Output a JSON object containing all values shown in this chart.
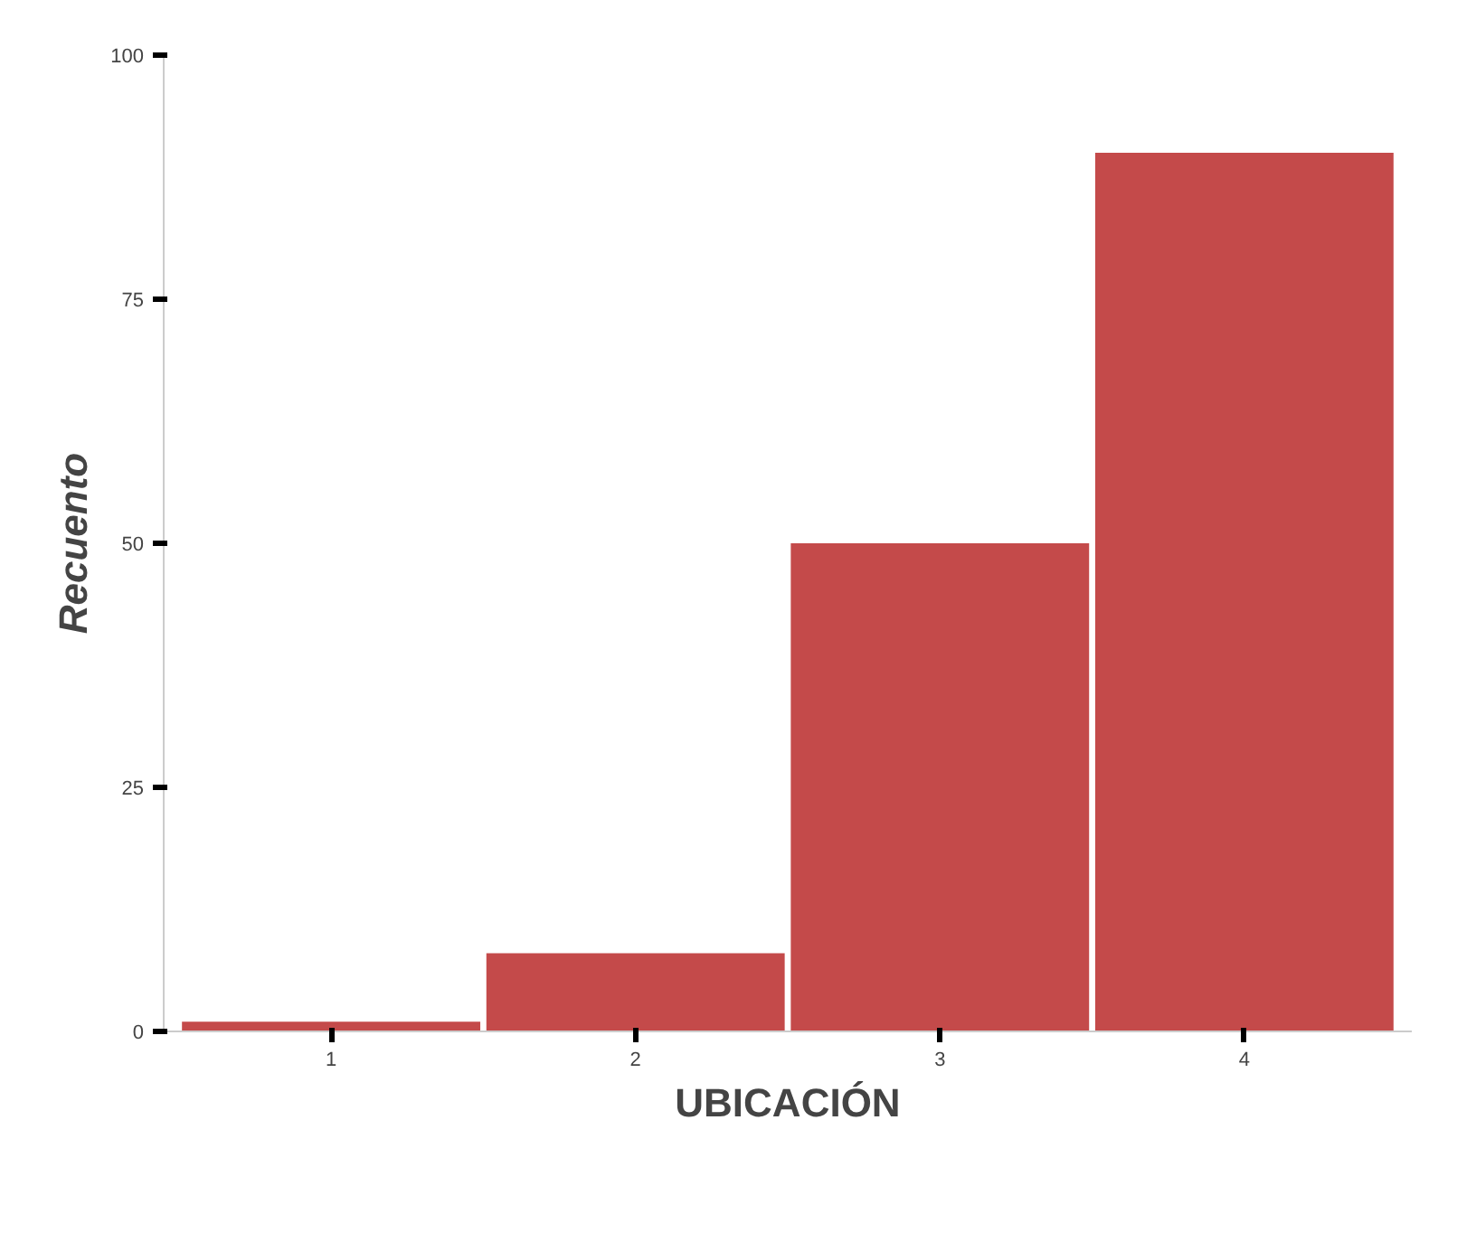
{
  "chart_data": {
    "type": "bar",
    "xlabel": "UBICACIÓN",
    "ylabel": "Recuento",
    "categories": [
      "1",
      "2",
      "3",
      "4"
    ],
    "values": [
      1,
      8,
      50,
      90
    ],
    "color": "#c44a4a",
    "ylim": [
      0,
      100
    ],
    "yticks": [
      0,
      25,
      50,
      75,
      100
    ],
    "grid": false
  }
}
